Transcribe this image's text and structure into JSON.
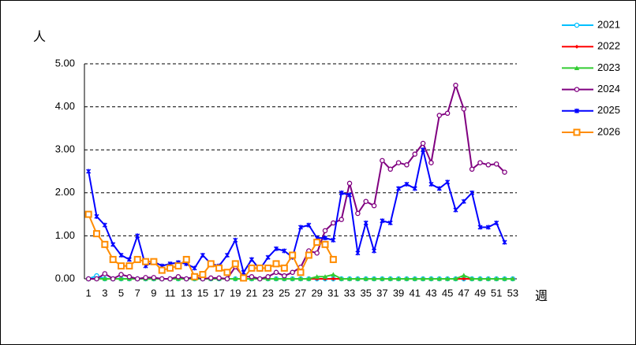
{
  "chart_data": {
    "type": "line",
    "y_label": "人",
    "x_label": "週",
    "categories": [
      "1",
      null,
      "3",
      null,
      "5",
      null,
      "7",
      null,
      "9",
      null,
      "11",
      null,
      "13",
      null,
      "15",
      null,
      "17",
      null,
      "19",
      null,
      "21",
      null,
      "23",
      null,
      "25",
      null,
      "27",
      null,
      "29",
      null,
      "31",
      null,
      "33",
      null,
      "35",
      null,
      "37",
      null,
      "39",
      null,
      "41",
      null,
      "43",
      null,
      "45",
      null,
      "47",
      null,
      "49",
      null,
      "51",
      null,
      "53"
    ],
    "ylim": [
      0,
      5
    ],
    "yticks": [
      {
        "value": 0,
        "label": "0.00"
      },
      {
        "value": 1,
        "label": "1.00"
      },
      {
        "value": 2,
        "label": "2.00"
      },
      {
        "value": 3,
        "label": "3.00"
      },
      {
        "value": 4,
        "label": "4.00"
      },
      {
        "value": 5,
        "label": "5.00"
      }
    ],
    "grid": true,
    "legend": "right",
    "series": [
      {
        "name": "2021",
        "color": "#00c0ff",
        "marker": "circle",
        "values": [
          0,
          0.07,
          0,
          0,
          0,
          0,
          0,
          0,
          0,
          0,
          0,
          0,
          0,
          0,
          0,
          0,
          0,
          0,
          0,
          0,
          0,
          0,
          0,
          0,
          0,
          0,
          0,
          0,
          0,
          0,
          0,
          0,
          0,
          0,
          0,
          0,
          0,
          0,
          0,
          0,
          0,
          0,
          0,
          0,
          0,
          0,
          0,
          0,
          0,
          0,
          0,
          0,
          0
        ]
      },
      {
        "name": "2022",
        "color": "#ff0000",
        "marker": "diamond",
        "values": [
          0,
          0,
          0,
          0,
          0,
          0,
          0,
          0,
          0,
          0,
          0,
          0,
          0,
          0,
          0,
          0,
          0,
          0,
          0,
          0,
          0,
          0,
          0,
          0,
          0,
          0,
          0,
          0,
          0,
          0,
          0,
          0,
          0,
          0,
          0,
          0,
          0,
          0,
          0,
          0,
          0,
          0,
          0,
          0,
          0,
          0,
          0,
          0,
          0,
          0,
          0,
          0,
          0
        ]
      },
      {
        "name": "2023",
        "color": "#33cc33",
        "marker": "triangle",
        "values": [
          0,
          0,
          0,
          0,
          0,
          0,
          0,
          0,
          0,
          0,
          0,
          0,
          0,
          0,
          0,
          0,
          0,
          0,
          0,
          0,
          0,
          0,
          0,
          0,
          0,
          0,
          0,
          0,
          0.05,
          0.05,
          0.1,
          0,
          0,
          0,
          0,
          0,
          0,
          0,
          0,
          0,
          0,
          0,
          0,
          0,
          0,
          0,
          0.08,
          0,
          0,
          0,
          0,
          0,
          0
        ]
      },
      {
        "name": "2024",
        "color": "#800080",
        "marker": "circle",
        "values": [
          0,
          0,
          0.12,
          0,
          0.1,
          0.05,
          0,
          0.03,
          0.03,
          0,
          0,
          0.05,
          0,
          0.05,
          0,
          0.02,
          0.02,
          0,
          0.28,
          0.05,
          0.05,
          0,
          0.05,
          0.15,
          0.07,
          0.15,
          0.27,
          0.65,
          0.6,
          1.12,
          1.3,
          1.38,
          2.22,
          1.52,
          1.8,
          1.7,
          2.75,
          2.55,
          2.7,
          2.65,
          2.9,
          3.15,
          2.7,
          3.8,
          3.85,
          4.5,
          3.95,
          2.55,
          2.7,
          2.65,
          2.67,
          2.48,
          null
        ]
      },
      {
        "name": "2025",
        "color": "#0000ff",
        "marker": "cross",
        "values": [
          2.5,
          1.45,
          1.25,
          0.8,
          0.55,
          0.45,
          1.0,
          0.3,
          0.4,
          0.3,
          0.35,
          0.38,
          0.35,
          0.25,
          0.55,
          0.35,
          0.3,
          0.55,
          0.9,
          0.15,
          0.45,
          0.22,
          0.5,
          0.7,
          0.65,
          0.5,
          1.2,
          1.25,
          0.95,
          0.95,
          0.9,
          2.0,
          1.95,
          0.6,
          1.3,
          0.65,
          1.35,
          1.3,
          2.1,
          2.2,
          2.1,
          3.0,
          2.2,
          2.1,
          2.25,
          1.6,
          1.8,
          2.0,
          1.2,
          1.2,
          1.3,
          0.85,
          null
        ]
      },
      {
        "name": "2026",
        "color": "#ff8c00",
        "marker": "square",
        "values": [
          1.5,
          1.05,
          0.8,
          0.45,
          0.3,
          0.3,
          0.45,
          0.4,
          0.4,
          0.2,
          0.25,
          0.3,
          0.45,
          0.05,
          0.1,
          0.35,
          0.25,
          0.15,
          0.35,
          0.02,
          0.25,
          0.25,
          0.25,
          0.35,
          0.25,
          0.55,
          0.15,
          0.55,
          0.85,
          0.8,
          0.45,
          null,
          null,
          null,
          null,
          null,
          null,
          null,
          null,
          null,
          null,
          null,
          null,
          null,
          null,
          null,
          null,
          null,
          null,
          null,
          null,
          null,
          null
        ]
      }
    ]
  }
}
